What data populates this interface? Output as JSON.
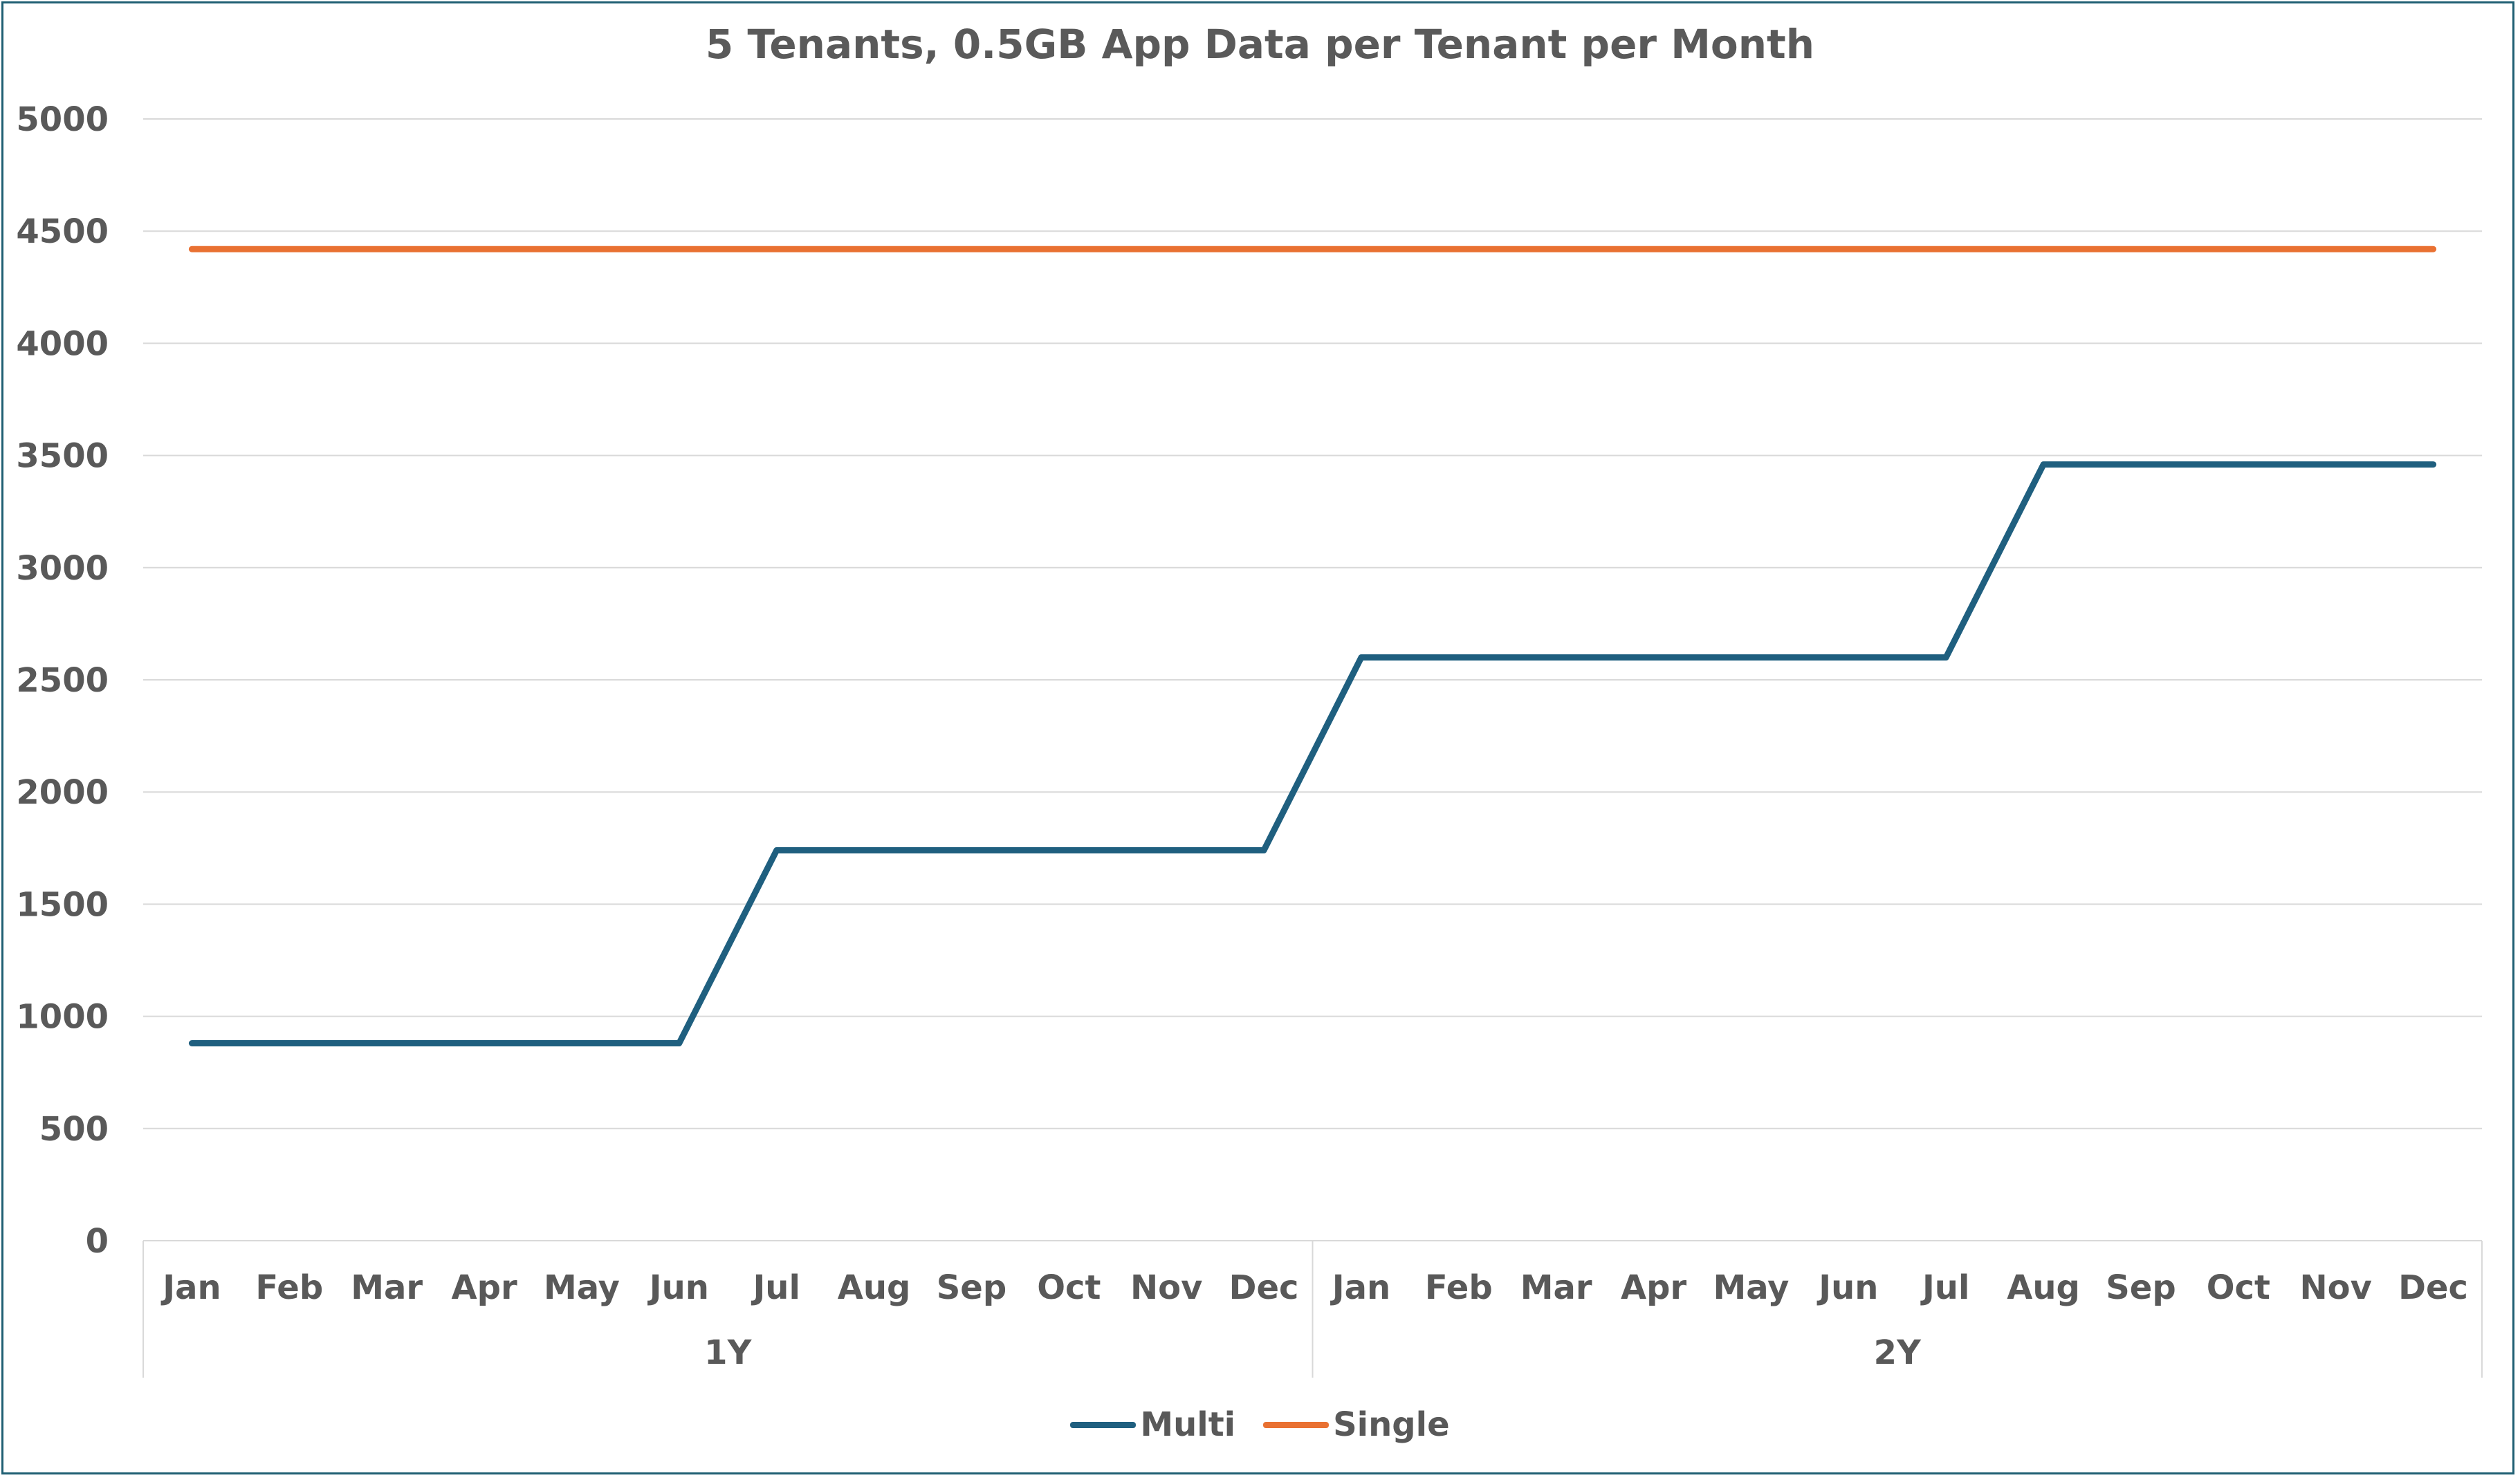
{
  "chart_data": {
    "type": "line",
    "title": "5 Tenants, 0.5GB App Data per Tenant per Month",
    "xlabel": "",
    "ylabel": "",
    "ylim": [
      0,
      5000
    ],
    "yticks": [
      0,
      500,
      1000,
      1500,
      2000,
      2500,
      3000,
      3500,
      4000,
      4500,
      5000
    ],
    "categories": [
      "Jan",
      "Feb",
      "Mar",
      "Apr",
      "May",
      "Jun",
      "Jul",
      "Aug",
      "Sep",
      "Oct",
      "Nov",
      "Dec",
      "Jan",
      "Feb",
      "Mar",
      "Apr",
      "May",
      "Jun",
      "Jul",
      "Aug",
      "Sep",
      "Oct",
      "Nov",
      "Dec"
    ],
    "groups": [
      {
        "label": "1Y",
        "count": 12
      },
      {
        "label": "2Y",
        "count": 12
      }
    ],
    "series": [
      {
        "name": "Multi",
        "color": "#1f5f7f",
        "values": [
          880,
          880,
          880,
          880,
          880,
          880,
          1740,
          1740,
          1740,
          1740,
          1740,
          1740,
          2600,
          2600,
          2600,
          2600,
          2600,
          2600,
          2600,
          3460,
          3460,
          3460,
          3460,
          3460
        ]
      },
      {
        "name": "Single",
        "color": "#e97132",
        "values": [
          4420,
          4420,
          4420,
          4420,
          4420,
          4420,
          4420,
          4420,
          4420,
          4420,
          4420,
          4420,
          4420,
          4420,
          4420,
          4420,
          4420,
          4420,
          4420,
          4420,
          4420,
          4420,
          4420,
          4420
        ]
      }
    ],
    "grid": true,
    "legend_position": "bottom"
  }
}
